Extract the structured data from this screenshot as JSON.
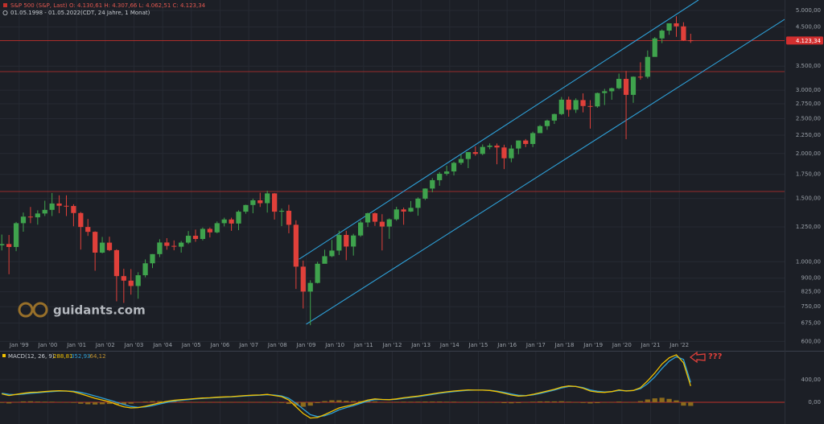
{
  "chart_data": [
    {
      "type": "candlestick",
      "title": "S&P 500 (S&P, Last)",
      "ohlc_text": "O: 4.130,61  H: 4.307,66  L: 4.062,51  C: 4.123,34",
      "subtitle": "01.05.1998 - 01.05.2022",
      "subtitle_info": "(CDT, 24 Jahre, 1 Monat)",
      "watermark": "guidants.com",
      "annotation": "???",
      "log_scale": true,
      "grid": true,
      "up_color": "#3fa34d",
      "down_color": "#e0403a",
      "x": [
        "1998-05",
        "1998-08",
        "1998-11",
        "1999-02",
        "1999-05",
        "1999-08",
        "1999-11",
        "2000-02",
        "2000-05",
        "2000-08",
        "2000-11",
        "2001-02",
        "2001-05",
        "2001-08",
        "2001-11",
        "2002-02",
        "2002-05",
        "2002-08",
        "2002-11",
        "2003-02",
        "2003-05",
        "2003-08",
        "2003-11",
        "2004-02",
        "2004-05",
        "2004-08",
        "2004-11",
        "2005-02",
        "2005-05",
        "2005-08",
        "2005-11",
        "2006-02",
        "2006-05",
        "2006-08",
        "2006-11",
        "2007-02",
        "2007-05",
        "2007-08",
        "2007-11",
        "2008-02",
        "2008-05",
        "2008-08",
        "2008-11",
        "2009-02",
        "2009-05",
        "2009-08",
        "2009-11",
        "2010-02",
        "2010-05",
        "2010-08",
        "2010-11",
        "2011-02",
        "2011-05",
        "2011-08",
        "2011-11",
        "2012-02",
        "2012-05",
        "2012-08",
        "2012-11",
        "2013-02",
        "2013-05",
        "2013-08",
        "2013-11",
        "2014-02",
        "2014-05",
        "2014-08",
        "2014-11",
        "2015-02",
        "2015-05",
        "2015-08",
        "2015-11",
        "2016-02",
        "2016-05",
        "2016-08",
        "2016-11",
        "2017-02",
        "2017-05",
        "2017-08",
        "2017-11",
        "2018-02",
        "2018-05",
        "2018-08",
        "2018-11",
        "2019-02",
        "2019-05",
        "2019-08",
        "2019-11",
        "2020-02",
        "2020-05",
        "2020-08",
        "2020-11",
        "2021-02",
        "2021-05",
        "2021-08",
        "2021-11",
        "2022-02",
        "2022-05"
      ],
      "open": [
        1111,
        1120,
        1099,
        1280,
        1335,
        1329,
        1362,
        1394,
        1452,
        1431,
        1429,
        1366,
        1249,
        1211,
        1060,
        1130,
        1077,
        912,
        886,
        856,
        917,
        990,
        1050,
        1131,
        1107,
        1101,
        1130,
        1181,
        1157,
        1234,
        1207,
        1280,
        1311,
        1277,
        1378,
        1438,
        1482,
        1455,
        1549,
        1378,
        1386,
        1267,
        969,
        826,
        873,
        987,
        1036,
        1074,
        1187,
        1102,
        1183,
        1286,
        1364,
        1292,
        1253,
        1312,
        1398,
        1379,
        1412,
        1498,
        1598,
        1686,
        1757,
        1783,
        1884,
        1931,
        2018,
        1995,
        2086,
        2104,
        2079,
        1940,
        2065,
        2174,
        2126,
        2279,
        2384,
        2470,
        2575,
        2824,
        2648,
        2816,
        2711,
        2704,
        2946,
        2980,
        3038,
        3226,
        2912,
        3271,
        3270,
        3714,
        4181,
        4395,
        4605,
        4516,
        4130.61
      ],
      "high": [
        1190,
        1187,
        1290,
        1370,
        1420,
        1390,
        1478,
        1553,
        1530,
        1530,
        1445,
        1375,
        1315,
        1215,
        1172,
        1174,
        1083,
        956,
        954,
        935,
        1015,
        1050,
        1155,
        1163,
        1146,
        1142,
        1217,
        1229,
        1245,
        1245,
        1294,
        1326,
        1326,
        1390,
        1441,
        1498,
        1556,
        1576,
        1553,
        1406,
        1440,
        1304,
        1007,
        888,
        1000,
        1080,
        1150,
        1220,
        1219,
        1196,
        1302,
        1370,
        1371,
        1356,
        1320,
        1422,
        1415,
        1475,
        1510,
        1600,
        1709,
        1776,
        1850,
        1897,
        1991,
        2019,
        2094,
        2120,
        2134,
        2132,
        2116,
        2111,
        2175,
        2194,
        2300,
        2401,
        2484,
        2582,
        2873,
        2879,
        2848,
        2940,
        2815,
        2955,
        3027,
        3050,
        3337,
        3394,
        3279,
        3588,
        3870,
        4218,
        4429,
        4606,
        4818,
        4637,
        4307.66
      ],
      "low": [
        1075,
        923,
        1070,
        1212,
        1280,
        1268,
        1340,
        1340,
        1365,
        1340,
        1255,
        1081,
        1180,
        944,
        1055,
        1070,
        776,
        768,
        810,
        789,
        905,
        960,
        1030,
        1080,
        1076,
        1060,
        1120,
        1136,
        1146,
        1168,
        1200,
        1254,
        1219,
        1224,
        1360,
        1364,
        1420,
        1370,
        1310,
        1256,
        1200,
        840,
        741,
        666,
        870,
        990,
        1030,
        1044,
        1010,
        1040,
        1173,
        1249,
        1258,
        1075,
        1158,
        1300,
        1267,
        1375,
        1343,
        1485,
        1560,
        1627,
        1737,
        1738,
        1860,
        1821,
        1972,
        1980,
        2056,
        1867,
        1810,
        1891,
        1991,
        2084,
        2084,
        2322,
        2328,
        2417,
        2557,
        2532,
        2594,
        2603,
        2346,
        2681,
        2728,
        2822,
        3020,
        2192,
        2767,
        3209,
        3234,
        3723,
        4056,
        4278,
        4223,
        4114,
        4062.51
      ],
      "close": [
        1120,
        1099,
        1280,
        1335,
        1329,
        1362,
        1394,
        1452,
        1431,
        1429,
        1366,
        1249,
        1211,
        1060,
        1130,
        1077,
        912,
        886,
        856,
        917,
        990,
        1050,
        1131,
        1107,
        1101,
        1130,
        1181,
        1157,
        1234,
        1207,
        1280,
        1311,
        1277,
        1378,
        1438,
        1482,
        1455,
        1549,
        1378,
        1386,
        1267,
        969,
        826,
        873,
        987,
        1036,
        1074,
        1187,
        1102,
        1183,
        1286,
        1364,
        1292,
        1253,
        1312,
        1398,
        1379,
        1412,
        1498,
        1598,
        1686,
        1757,
        1783,
        1884,
        1931,
        2018,
        1995,
        2086,
        2104,
        2079,
        1940,
        2065,
        2174,
        2126,
        2279,
        2384,
        2470,
        2575,
        2824,
        2648,
        2816,
        2711,
        2704,
        2946,
        2980,
        3038,
        3226,
        2912,
        3271,
        3270,
        3714,
        4181,
        4395,
        4605,
        4516,
        4132,
        4123.34
      ],
      "xlim": [
        "1998-05",
        "2025-09"
      ],
      "xticks": [
        {
          "value": "1999-01",
          "label": "Jan '99"
        },
        {
          "value": "2000-01",
          "label": "Jan '00"
        },
        {
          "value": "2001-01",
          "label": "Jan '01"
        },
        {
          "value": "2002-01",
          "label": "Jan '02"
        },
        {
          "value": "2003-01",
          "label": "Jan '03"
        },
        {
          "value": "2004-01",
          "label": "Jan '04"
        },
        {
          "value": "2005-01",
          "label": "Jan '05"
        },
        {
          "value": "2006-01",
          "label": "Jan '06"
        },
        {
          "value": "2007-01",
          "label": "Jan '07"
        },
        {
          "value": "2008-01",
          "label": "Jan '08"
        },
        {
          "value": "2009-01",
          "label": "Jan '09"
        },
        {
          "value": "2010-01",
          "label": "Jan '10"
        },
        {
          "value": "2011-01",
          "label": "Jan '11"
        },
        {
          "value": "2012-01",
          "label": "Jan '12"
        },
        {
          "value": "2013-01",
          "label": "Jan '13"
        },
        {
          "value": "2014-01",
          "label": "Jan '14"
        },
        {
          "value": "2015-01",
          "label": "Jan '15"
        },
        {
          "value": "2016-01",
          "label": "Jan '16"
        },
        {
          "value": "2017-01",
          "label": "Jan '17"
        },
        {
          "value": "2018-01",
          "label": "Jan '18"
        },
        {
          "value": "2019-01",
          "label": "Jan '19"
        },
        {
          "value": "2020-01",
          "label": "Jan '20"
        },
        {
          "value": "2021-01",
          "label": "Jan '21"
        },
        {
          "value": "2022-01",
          "label": "Jan '22"
        }
      ],
      "ylim": [
        577,
        5347
      ],
      "yticks": [
        {
          "value": 5000,
          "label": "5.000,00"
        },
        {
          "value": 4500,
          "label": "4.500,00"
        },
        {
          "value": 3500,
          "label": "3.500,00"
        },
        {
          "value": 3000,
          "label": "3.000,00"
        },
        {
          "value": 2750,
          "label": "2.750,00"
        },
        {
          "value": 2500,
          "label": "2.500,00"
        },
        {
          "value": 2250,
          "label": "2.250,00"
        },
        {
          "value": 2000,
          "label": "2.000,00"
        },
        {
          "value": 1750,
          "label": "1.750,00"
        },
        {
          "value": 1500,
          "label": "1.500,00"
        },
        {
          "value": 1250,
          "label": "1.250,00"
        },
        {
          "value": 1000,
          "label": "1.000,00"
        },
        {
          "value": 900,
          "label": "900,00"
        },
        {
          "value": 825,
          "label": "825,00"
        },
        {
          "value": 750,
          "label": "750,00"
        },
        {
          "value": 675,
          "label": "675,00"
        },
        {
          "value": 600,
          "label": "600,00"
        }
      ],
      "last_price": {
        "value": 4123.34,
        "label": "4.123,34"
      },
      "levels": [
        3380,
        1568
      ],
      "level_color": "#c0302b",
      "channel_color": "#2e9fd6",
      "channel": [
        {
          "x": [
            "2008-10",
            "2022-09"
          ],
          "y": [
            1016,
            5347
          ]
        },
        {
          "x": [
            "2009-01",
            "2025-09"
          ],
          "y": [
            670,
            4724
          ]
        }
      ]
    },
    {
      "type": "macd",
      "title": "MACD(12, 26, 9)",
      "value_labels": [
        "288,81",
        "352,93",
        "-64,12"
      ],
      "ylim": [
        -386,
        900
      ],
      "yticks": [
        {
          "value": 400,
          "label": "400,00"
        },
        {
          "value": 0,
          "label": "0,00"
        }
      ],
      "series": [
        {
          "name": "MACD",
          "color": "#f2c200",
          "values": [
            150,
            120,
            140,
            160,
            175,
            180,
            190,
            200,
            205,
            200,
            185,
            150,
            110,
            70,
            40,
            10,
            -40,
            -80,
            -100,
            -95,
            -70,
            -40,
            -10,
            15,
            35,
            45,
            55,
            65,
            75,
            80,
            90,
            95,
            100,
            110,
            120,
            125,
            130,
            140,
            120,
            100,
            40,
            -80,
            -200,
            -280,
            -270,
            -220,
            -160,
            -100,
            -70,
            -40,
            0,
            40,
            60,
            50,
            45,
            60,
            80,
            95,
            110,
            130,
            150,
            170,
            185,
            200,
            210,
            220,
            215,
            215,
            210,
            190,
            160,
            130,
            110,
            115,
            140,
            170,
            200,
            230,
            270,
            290,
            280,
            250,
            200,
            180,
            175,
            190,
            220,
            200,
            210,
            260,
            380,
            520,
            680,
            790,
            843,
            700,
            288.81
          ]
        },
        {
          "name": "Signal",
          "color": "#2e9fd6",
          "values": [
            160,
            140,
            135,
            145,
            158,
            168,
            180,
            190,
            198,
            200,
            195,
            175,
            145,
            110,
            75,
            40,
            0,
            -40,
            -75,
            -90,
            -82,
            -60,
            -30,
            -5,
            20,
            35,
            47,
            58,
            68,
            76,
            84,
            90,
            96,
            104,
            113,
            120,
            126,
            134,
            128,
            112,
            70,
            -20,
            -120,
            -220,
            -255,
            -240,
            -195,
            -135,
            -95,
            -60,
            -20,
            20,
            45,
            50,
            47,
            52,
            70,
            86,
            100,
            118,
            138,
            158,
            176,
            190,
            203,
            213,
            215,
            215,
            212,
            198,
            175,
            148,
            124,
            118,
            130,
            155,
            185,
            215,
            252,
            280,
            282,
            262,
            220,
            195,
            182,
            188,
            208,
            204,
            208,
            240,
            330,
            450,
            600,
            730,
            810,
            760,
            352.93
          ]
        },
        {
          "name": "Histogram",
          "color": "#8c6a1c",
          "values": [
            -10,
            -20,
            5,
            15,
            17,
            12,
            10,
            10,
            7,
            0,
            -10,
            -25,
            -35,
            -40,
            -35,
            -30,
            -40,
            -40,
            -25,
            -5,
            12,
            20,
            20,
            20,
            15,
            10,
            8,
            7,
            7,
            4,
            6,
            5,
            4,
            6,
            7,
            5,
            4,
            6,
            -8,
            -12,
            -30,
            -60,
            -80,
            -60,
            -15,
            20,
            35,
            35,
            25,
            20,
            20,
            20,
            15,
            0,
            -2,
            8,
            10,
            9,
            10,
            12,
            12,
            12,
            9,
            10,
            7,
            7,
            0,
            0,
            -2,
            -8,
            -15,
            -18,
            -14,
            -3,
            10,
            15,
            15,
            15,
            18,
            10,
            -2,
            -12,
            -20,
            -15,
            -7,
            2,
            12,
            -4,
            2,
            20,
            50,
            70,
            80,
            60,
            33,
            -60,
            -64.12
          ]
        }
      ],
      "zero_color": "#c0302b"
    }
  ]
}
